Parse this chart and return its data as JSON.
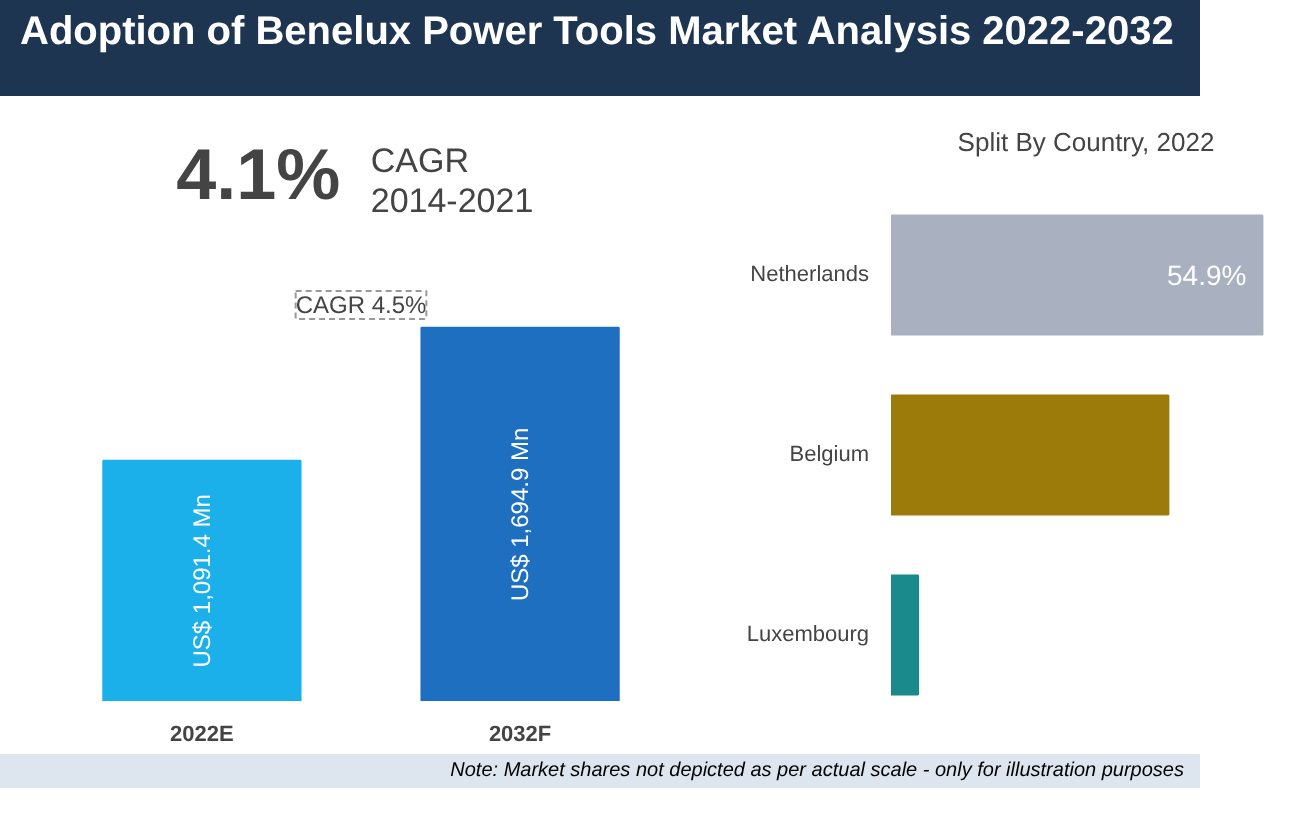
{
  "chart_data": [
    {
      "type": "other",
      "title": "Adoption of Benelux Power Tools Market Analysis 2022-2032",
      "annotations": [
        "4.1%",
        "CAGR",
        "2014-2021"
      ]
    },
    {
      "type": "bar",
      "categories": [
        "2022E",
        "2032F"
      ],
      "values": [
        1091.4,
        1694.9
      ],
      "colors": [
        "#1bb0ea",
        "#1f6fc0"
      ],
      "value_labels": [
        "US$ 1,091.4 Mn",
        "US$ 1,694.9 Mn"
      ],
      "annotations": [
        "CAGR 4.5%"
      ]
    },
    {
      "type": "bar",
      "orientation": "horizontal",
      "title": "Split By Country, 2022",
      "categories": [
        "Netherlands",
        "Belgium",
        "Luxembourg"
      ],
      "values": [
        54.9,
        41,
        4
      ],
      "colors": [
        "#a9b1c1",
        "#9c7b0b",
        "#1b8a8d"
      ],
      "value_labels": [
        "54.9%",
        null,
        null
      ],
      "annotations": [
        "Note: Market shares not depicted as per actual scale - only for illustration purposes"
      ]
    }
  ]
}
